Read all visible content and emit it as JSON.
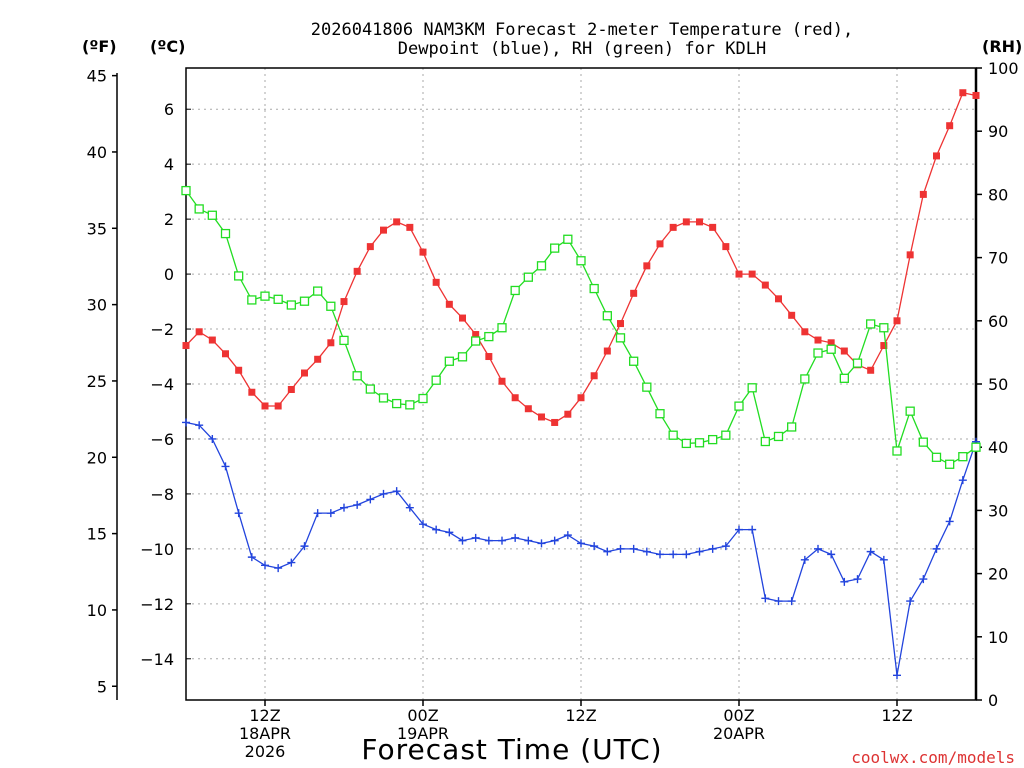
{
  "chart_data": {
    "type": "line",
    "title_line1": "2026041806 NAM3KM Forecast 2-meter Temperature (red),",
    "title_line2": "Dewpoint (blue), RH (green) for KDLH",
    "units": {
      "fahrenheit": "(ºF)",
      "celsius": "(ºC)",
      "rh": "(RH)"
    },
    "xlabel": "Forecast Time (UTC)",
    "credit": "coolwx.com/models",
    "x_axis": {
      "start_hour": 0,
      "end_hour": 60,
      "ticks": [
        {
          "hour": 6,
          "line1": "12Z",
          "line2": "18APR",
          "line3": "2026"
        },
        {
          "hour": 18,
          "line1": "00Z",
          "line2": "19APR",
          "line3": ""
        },
        {
          "hour": 30,
          "line1": "12Z",
          "line2": "",
          "line3": ""
        },
        {
          "hour": 42,
          "line1": "00Z",
          "line2": "20APR",
          "line3": ""
        },
        {
          "hour": 54,
          "line1": "12Z",
          "line2": "",
          "line3": ""
        }
      ]
    },
    "celsius_axis": {
      "ylim": [
        -15.5,
        7.5
      ],
      "ticks": [
        6,
        4,
        2,
        0,
        -2,
        -4,
        -6,
        -8,
        -10,
        -12,
        -14
      ]
    },
    "fahrenheit_axis": {
      "ticks": [
        45,
        40,
        35,
        30,
        25,
        20,
        15,
        10,
        5
      ]
    },
    "rh_axis": {
      "ylim": [
        0,
        100
      ],
      "ticks": [
        100,
        90,
        80,
        70,
        60,
        50,
        40,
        30,
        20,
        10,
        0
      ]
    },
    "hours": [
      0,
      1,
      2,
      3,
      4,
      5,
      6,
      7,
      8,
      9,
      10,
      11,
      12,
      13,
      14,
      15,
      16,
      17,
      18,
      19,
      20,
      21,
      22,
      23,
      24,
      25,
      26,
      27,
      28,
      29,
      30,
      31,
      32,
      33,
      34,
      35,
      36,
      37,
      38,
      39,
      40,
      41,
      42,
      43,
      44,
      45,
      46,
      47,
      48,
      49,
      50,
      51,
      52,
      53,
      54,
      55,
      56,
      57,
      58,
      59,
      60
    ],
    "series": [
      {
        "name": "2-meter Temperature",
        "axis": "celsius",
        "color": "#ee3333",
        "marker": "filled-square",
        "values": [
          -2.6,
          -2.1,
          -2.4,
          -2.9,
          -3.5,
          -4.3,
          -4.8,
          -4.8,
          -4.2,
          -3.6,
          -3.1,
          -2.5,
          -1.0,
          0.1,
          1.0,
          1.6,
          1.9,
          1.7,
          0.8,
          -0.3,
          -1.1,
          -1.6,
          -2.2,
          -3.0,
          -3.9,
          -4.5,
          -4.9,
          -5.2,
          -5.4,
          -5.1,
          -4.5,
          -3.7,
          -2.8,
          -1.8,
          -0.7,
          0.3,
          1.1,
          1.7,
          1.9,
          1.9,
          1.7,
          1.0,
          0.0,
          0.0,
          -0.4,
          -0.9,
          -1.5,
          -2.1,
          -2.4,
          -2.5,
          -2.8,
          -3.3,
          -3.5,
          -2.6,
          -1.7,
          0.7,
          2.9,
          4.3,
          5.4,
          6.6,
          6.5
        ]
      },
      {
        "name": "Dewpoint",
        "axis": "celsius",
        "color": "#2244dd",
        "marker": "plus",
        "values": [
          -5.4,
          -5.5,
          -6.0,
          -7.0,
          -8.7,
          -10.3,
          -10.6,
          -10.7,
          -10.5,
          -9.9,
          -8.7,
          -8.7,
          -8.5,
          -8.4,
          -8.2,
          -8.0,
          -7.9,
          -8.5,
          -9.1,
          -9.3,
          -9.4,
          -9.7,
          -9.6,
          -9.7,
          -9.7,
          -9.6,
          -9.7,
          -9.8,
          -9.7,
          -9.5,
          -9.8,
          -9.9,
          -10.1,
          -10.0,
          -10.0,
          -10.1,
          -10.2,
          -10.2,
          -10.2,
          -10.1,
          -10.0,
          -9.9,
          -9.3,
          -9.3,
          -11.8,
          -11.9,
          -11.9,
          -10.4,
          -10.0,
          -10.2,
          -11.2,
          -11.1,
          -10.1,
          -10.4,
          -14.6,
          -11.9,
          -11.1,
          -10.0,
          -9.0,
          -7.5,
          -6.1
        ]
      },
      {
        "name": "RH",
        "axis": "rh",
        "color": "#22dd22",
        "marker": "open-square",
        "values": [
          80.6,
          77.7,
          76.7,
          73.8,
          67.1,
          63.3,
          63.9,
          63.4,
          62.5,
          63.1,
          64.7,
          62.3,
          56.9,
          51.3,
          49.2,
          47.8,
          46.9,
          46.7,
          47.7,
          50.6,
          53.6,
          54.3,
          56.8,
          57.5,
          58.9,
          64.8,
          66.9,
          68.7,
          71.5,
          72.9,
          69.5,
          65.1,
          60.8,
          57.3,
          53.6,
          49.5,
          45.3,
          41.9,
          40.6,
          40.7,
          41.2,
          41.9,
          46.5,
          49.4,
          40.9,
          41.7,
          43.2,
          50.8,
          54.9,
          55.5,
          50.9,
          53.3,
          59.5,
          58.9,
          39.4,
          45.7,
          40.8,
          38.4,
          37.3,
          38.5,
          40.0
        ]
      }
    ]
  }
}
